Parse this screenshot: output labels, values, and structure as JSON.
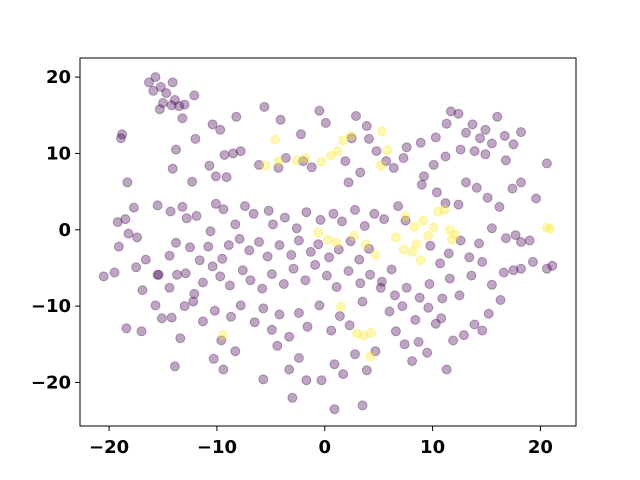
{
  "chart_data": {
    "type": "scatter",
    "title": "",
    "xlabel": "",
    "ylabel": "",
    "xlim": [
      -22.7,
      23.3
    ],
    "ylim": [
      -25.7,
      22.5
    ],
    "xticks": [
      -20,
      -10,
      0,
      10,
      20
    ],
    "xtick_labels": [
      "−20",
      "−10",
      "0",
      "10",
      "20"
    ],
    "yticks": [
      -20,
      -10,
      0,
      10,
      20
    ],
    "ytick_labels": [
      "−20",
      "−10",
      "0",
      "10",
      "20"
    ],
    "grid": false,
    "legend": "none",
    "marker_alpha": 0.35,
    "colors": {
      "class_0": "#440154",
      "class_1": "#fde725"
    },
    "series": [
      {
        "color": "#440154",
        "points": [
          [
            -15.7,
            20.0
          ],
          [
            -16.3,
            19.3
          ],
          [
            -15.2,
            18.7
          ],
          [
            -14.1,
            19.3
          ],
          [
            -15.9,
            18.2
          ],
          [
            -14.7,
            17.9
          ],
          [
            -13.9,
            17.0
          ],
          [
            -12.1,
            17.6
          ],
          [
            -15.0,
            16.6
          ],
          [
            -14.2,
            16.3
          ],
          [
            -13.5,
            16.2
          ],
          [
            -13.2,
            14.6
          ],
          [
            -13.0,
            16.4
          ],
          [
            -15.3,
            15.8
          ],
          [
            -18.8,
            12.5
          ],
          [
            -18.9,
            12.0
          ],
          [
            -12.0,
            11.9
          ],
          [
            -10.4,
            13.8
          ],
          [
            -9.7,
            13.1
          ],
          [
            -8.2,
            14.8
          ],
          [
            -5.6,
            16.1
          ],
          [
            -4.1,
            14.4
          ],
          [
            -2.2,
            12.5
          ],
          [
            -0.5,
            15.6
          ],
          [
            0.1,
            14.0
          ],
          [
            2.5,
            12.0
          ],
          [
            4.1,
            11.9
          ],
          [
            3.9,
            13.6
          ],
          [
            2.9,
            14.9
          ],
          [
            -18.3,
            6.2
          ],
          [
            -14.1,
            8.0
          ],
          [
            -13.8,
            10.5
          ],
          [
            -12.3,
            6.3
          ],
          [
            -10.7,
            8.4
          ],
          [
            -10.1,
            7.0
          ],
          [
            -9.1,
            6.9
          ],
          [
            -8.5,
            10.0
          ],
          [
            -7.8,
            10.3
          ],
          [
            -9.3,
            9.8
          ],
          [
            -6.1,
            8.5
          ],
          [
            -4.3,
            8.1
          ],
          [
            -3.6,
            9.4
          ],
          [
            -2.0,
            9.0
          ],
          [
            -1.2,
            8.2
          ],
          [
            1.9,
            9.0
          ],
          [
            2.2,
            6.2
          ],
          [
            3.3,
            7.5
          ],
          [
            4.8,
            10.3
          ],
          [
            5.7,
            9.0
          ],
          [
            6.4,
            8.1
          ],
          [
            7.3,
            9.4
          ],
          [
            7.6,
            10.8
          ],
          [
            8.9,
            11.4
          ],
          [
            9.2,
            7.0
          ],
          [
            10.1,
            8.5
          ],
          [
            -19.2,
            1.0
          ],
          [
            -18.5,
            1.4
          ],
          [
            -17.7,
            2.9
          ],
          [
            -15.5,
            3.2
          ],
          [
            -14.3,
            2.4
          ],
          [
            -13.2,
            3.0
          ],
          [
            -12.8,
            1.5
          ],
          [
            -11.9,
            1.8
          ],
          [
            -10.6,
            -0.2
          ],
          [
            -10.1,
            3.4
          ],
          [
            -9.4,
            2.7
          ],
          [
            -8.3,
            0.7
          ],
          [
            -7.4,
            3.1
          ],
          [
            -6.6,
            2.1
          ],
          [
            -5.2,
            2.5
          ],
          [
            -4.8,
            0.7
          ],
          [
            -3.7,
            1.6
          ],
          [
            -2.6,
            0.2
          ],
          [
            -1.7,
            2.3
          ],
          [
            -0.4,
            1.3
          ],
          [
            0.8,
            2.1
          ],
          [
            1.6,
            1.1
          ],
          [
            2.8,
            2.6
          ],
          [
            3.7,
            0.5
          ],
          [
            4.6,
            2.1
          ],
          [
            5.5,
            1.4
          ],
          [
            6.8,
            3.1
          ],
          [
            7.5,
            1.2
          ],
          [
            -19.1,
            -2.2
          ],
          [
            -18.2,
            -0.5
          ],
          [
            -17.4,
            -1.0
          ],
          [
            -16.6,
            -3.9
          ],
          [
            -15.4,
            -5.9
          ],
          [
            -14.4,
            -3.4
          ],
          [
            -13.8,
            -1.7
          ],
          [
            -12.5,
            -2.3
          ],
          [
            -11.6,
            -4.0
          ],
          [
            -10.8,
            -2.2
          ],
          [
            -9.5,
            -3.8
          ],
          [
            -8.9,
            -2.0
          ],
          [
            -7.9,
            -1.2
          ],
          [
            -7.0,
            -2.7
          ],
          [
            -6.1,
            -1.6
          ],
          [
            -5.3,
            -3.5
          ],
          [
            -4.2,
            -2.0
          ],
          [
            -3.1,
            -3.3
          ],
          [
            -2.4,
            -1.4
          ],
          [
            -1.3,
            -2.9
          ],
          [
            -0.6,
            -1.9
          ],
          [
            0.4,
            -3.6
          ],
          [
            1.3,
            -2.6
          ],
          [
            2.4,
            -1.5
          ],
          [
            3.2,
            -3.9
          ],
          [
            4.1,
            -2.5
          ],
          [
            -20.5,
            -6.1
          ],
          [
            -19.5,
            -5.6
          ],
          [
            -17.5,
            -4.9
          ],
          [
            -16.9,
            -7.9
          ],
          [
            -15.5,
            -5.9
          ],
          [
            -14.4,
            -7.6
          ],
          [
            -13.7,
            -5.9
          ],
          [
            -12.9,
            -5.7
          ],
          [
            -12.1,
            -8.4
          ],
          [
            -11.3,
            -6.9
          ],
          [
            -10.4,
            -4.8
          ],
          [
            -9.7,
            -6.1
          ],
          [
            -8.8,
            -7.3
          ],
          [
            -7.6,
            -5.3
          ],
          [
            -6.9,
            -6.6
          ],
          [
            -5.8,
            -7.7
          ],
          [
            -4.9,
            -5.8
          ],
          [
            -3.8,
            -7.1
          ],
          [
            -2.9,
            -5.1
          ],
          [
            -1.8,
            -6.6
          ],
          [
            -0.9,
            -4.6
          ],
          [
            0.2,
            -6.0
          ],
          [
            1.1,
            -7.5
          ],
          [
            2.2,
            -5.4
          ],
          [
            3.3,
            -7.0
          ],
          [
            4.2,
            -5.9
          ],
          [
            5.3,
            -6.8
          ],
          [
            6.2,
            -5.2
          ],
          [
            -18.4,
            -12.9
          ],
          [
            -17.0,
            -13.3
          ],
          [
            -15.7,
            -9.9
          ],
          [
            -15.1,
            -11.6
          ],
          [
            -14.2,
            -11.5
          ],
          [
            -13.4,
            -14.2
          ],
          [
            -13.0,
            -10.0
          ],
          [
            -12.2,
            -9.4
          ],
          [
            -11.3,
            -12.0
          ],
          [
            -10.2,
            -10.6
          ],
          [
            -9.6,
            -14.5
          ],
          [
            -8.7,
            -11.4
          ],
          [
            -7.8,
            -9.9
          ],
          [
            -6.5,
            -12.1
          ],
          [
            -5.7,
            -10.3
          ],
          [
            -4.9,
            -13.1
          ],
          [
            -4.2,
            -11.1
          ],
          [
            -3.3,
            -14.0
          ],
          [
            -2.4,
            -10.9
          ],
          [
            -1.6,
            -12.7
          ],
          [
            -0.5,
            -9.9
          ],
          [
            0.6,
            -13.2
          ],
          [
            1.4,
            -11.3
          ],
          [
            2.3,
            -12.5
          ],
          [
            3.5,
            -9.4
          ],
          [
            -13.9,
            -17.9
          ],
          [
            -10.3,
            -16.9
          ],
          [
            -9.4,
            -18.3
          ],
          [
            -8.3,
            -15.9
          ],
          [
            -5.7,
            -19.6
          ],
          [
            -4.4,
            -15.2
          ],
          [
            -3.3,
            -18.3
          ],
          [
            -2.4,
            -16.8
          ],
          [
            -1.7,
            -19.7
          ],
          [
            -0.3,
            -19.7
          ],
          [
            0.9,
            -17.6
          ],
          [
            1.7,
            -18.9
          ],
          [
            2.8,
            -16.3
          ],
          [
            3.9,
            -18.4
          ],
          [
            4.7,
            -15.9
          ],
          [
            -3.0,
            -22.0
          ],
          [
            0.9,
            -23.5
          ],
          [
            3.5,
            -23.0
          ],
          [
            6.6,
            -13.3
          ],
          [
            7.4,
            -15.0
          ],
          [
            8.1,
            -17.2
          ],
          [
            8.7,
            -14.7
          ],
          [
            9.5,
            -16.1
          ],
          [
            10.3,
            -12.3
          ],
          [
            11.3,
            -18.3
          ],
          [
            11.9,
            -14.5
          ],
          [
            12.9,
            -13.8
          ],
          [
            13.9,
            -12.4
          ],
          [
            14.6,
            -13.2
          ],
          [
            15.2,
            -11.0
          ],
          [
            16.3,
            -9.2
          ],
          [
            6.0,
            -10.7
          ],
          [
            7.2,
            -10.0
          ],
          [
            8.4,
            -11.8
          ],
          [
            9.6,
            -10.2
          ],
          [
            10.8,
            -11.6
          ],
          [
            5.2,
            -7.6
          ],
          [
            6.5,
            -8.6
          ],
          [
            7.6,
            -7.6
          ],
          [
            8.8,
            -8.9
          ],
          [
            9.7,
            -7.1
          ],
          [
            10.9,
            -9.0
          ],
          [
            11.6,
            -6.4
          ],
          [
            12.5,
            -8.6
          ],
          [
            13.6,
            -6.0
          ],
          [
            14.6,
            -4.2
          ],
          [
            15.5,
            -7.2
          ],
          [
            16.6,
            -5.6
          ],
          [
            17.5,
            -5.3
          ],
          [
            18.2,
            -5.1
          ],
          [
            19.3,
            -4.2
          ],
          [
            20.6,
            -5.1
          ],
          [
            21.1,
            -4.7
          ],
          [
            9.8,
            -2.1
          ],
          [
            10.7,
            -4.4
          ],
          [
            11.5,
            -3.1
          ],
          [
            12.6,
            -1.4
          ],
          [
            13.4,
            -3.6
          ],
          [
            14.3,
            -1.8
          ],
          [
            15.5,
            0.2
          ],
          [
            16.8,
            -1.1
          ],
          [
            17.7,
            -0.7
          ],
          [
            18.2,
            -1.6
          ],
          [
            19.0,
            -1.4
          ],
          [
            9.0,
            5.9
          ],
          [
            10.4,
            4.9
          ],
          [
            11.2,
            3.5
          ],
          [
            12.4,
            3.3
          ],
          [
            13.1,
            6.2
          ],
          [
            14.1,
            5.5
          ],
          [
            15.1,
            4.2
          ],
          [
            16.2,
            3.0
          ],
          [
            17.4,
            5.4
          ],
          [
            18.2,
            6.2
          ],
          [
            19.6,
            4.1
          ],
          [
            20.6,
            8.7
          ],
          [
            10.3,
            12.1
          ],
          [
            11.3,
            13.9
          ],
          [
            11.7,
            15.5
          ],
          [
            12.4,
            15.2
          ],
          [
            13.1,
            12.7
          ],
          [
            13.7,
            13.8
          ],
          [
            14.4,
            12.0
          ],
          [
            14.9,
            13.1
          ],
          [
            15.5,
            11.3
          ],
          [
            16.0,
            14.8
          ],
          [
            16.7,
            12.3
          ],
          [
            17.5,
            11.2
          ],
          [
            18.2,
            12.8
          ],
          [
            14.9,
            9.9
          ],
          [
            16.8,
            9.1
          ],
          [
            11.2,
            9.6
          ],
          [
            12.6,
            10.5
          ],
          [
            13.9,
            10.3
          ]
        ]
      },
      {
        "color": "#fde725",
        "points": [
          [
            -5.5,
            8.4
          ],
          [
            -4.6,
            11.8
          ],
          [
            -4.3,
            9.0
          ],
          [
            -2.6,
            9.1
          ],
          [
            -1.8,
            9.4
          ],
          [
            -0.3,
            8.9
          ],
          [
            0.6,
            9.7
          ],
          [
            1.2,
            10.3
          ],
          [
            1.7,
            11.7
          ],
          [
            2.4,
            12.3
          ],
          [
            5.3,
            12.9
          ],
          [
            5.2,
            8.4
          ],
          [
            5.8,
            10.4
          ],
          [
            7.5,
            1.8
          ],
          [
            8.3,
            0.4
          ],
          [
            8.5,
            -1.9
          ],
          [
            9.1,
            1.2
          ],
          [
            9.6,
            -0.8
          ],
          [
            10.1,
            0.3
          ],
          [
            10.5,
            2.4
          ],
          [
            11.1,
            2.6
          ],
          [
            11.6,
            0.0
          ],
          [
            11.8,
            -1.3
          ],
          [
            12.1,
            -0.6
          ],
          [
            8.1,
            -2.9
          ],
          [
            8.9,
            -4.0
          ],
          [
            7.3,
            -2.6
          ],
          [
            6.6,
            -1.0
          ],
          [
            -0.6,
            -0.4
          ],
          [
            0.3,
            -1.3
          ],
          [
            1.1,
            -1.7
          ],
          [
            2.7,
            -0.8
          ],
          [
            3.8,
            -1.9
          ],
          [
            4.7,
            -3.3
          ],
          [
            -9.4,
            -13.8
          ],
          [
            1.5,
            -10.1
          ],
          [
            3.0,
            -13.6
          ],
          [
            3.6,
            -13.9
          ],
          [
            4.3,
            -13.5
          ],
          [
            4.2,
            -16.6
          ],
          [
            20.6,
            0.3
          ],
          [
            20.9,
            0.1
          ]
        ]
      }
    ]
  }
}
